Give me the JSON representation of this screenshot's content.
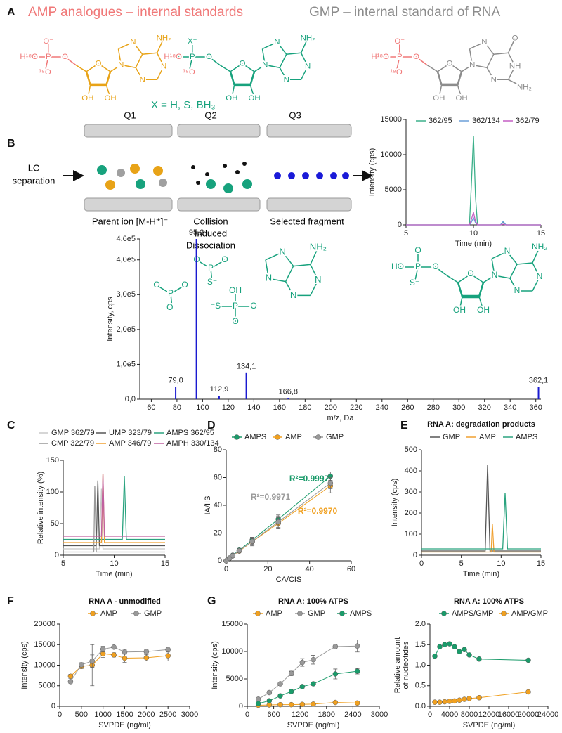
{
  "panel_labels": [
    "A",
    "B",
    "C",
    "D",
    "E",
    "F",
    "G"
  ],
  "panel_a": {
    "header_left": "AMP analogues  – internal standards",
    "header_right": "GMP  – internal standard of RNA",
    "x_note": "X = H, S, BH₃",
    "molecules": [
      {
        "phosphate": [
          "O⁻",
          "H¹⁸O",
          "O",
          "¹⁸O",
          "P"
        ],
        "sugar": [
          "O",
          "OH",
          "OH"
        ],
        "base": [
          "N",
          "N",
          "N",
          "N",
          "NH₂"
        ]
      },
      {
        "phosphate": [
          "X⁻",
          "H¹⁸O",
          "O",
          "¹⁸O",
          "P"
        ],
        "sugar": [
          "O",
          "OH",
          "OH"
        ],
        "base": [
          "N",
          "N",
          "N",
          "N",
          "NH₂"
        ]
      },
      {
        "phosphate": [
          "O⁻",
          "H¹⁸O",
          "O",
          "¹⁸O",
          "P"
        ],
        "sugar": [
          "O",
          "OH",
          "OH"
        ],
        "base": [
          "N",
          "N",
          "N",
          "NH",
          "O",
          "NH₂"
        ]
      }
    ]
  },
  "panel_b": {
    "stages": [
      "Q1",
      "Q2",
      "Q3"
    ],
    "inlet": [
      "LC",
      "separation"
    ],
    "captions": [
      [
        "Parent ion [M-H⁺]⁻"
      ],
      [
        "Collision",
        "Induced",
        "Dissociation"
      ],
      [
        "Selected fragment"
      ]
    ],
    "fragments": [
      {
        "atoms": [
          "P",
          "O",
          "O",
          "S⁻"
        ]
      },
      {
        "atoms": [
          "P",
          "O",
          "O",
          "O⁻"
        ]
      },
      {
        "atoms": [
          "P",
          "OH",
          "⁻S",
          "O",
          "O"
        ]
      }
    ],
    "base_fragment": {
      "base": [
        "N",
        "N",
        "N",
        "N",
        "NH₂"
      ]
    },
    "structure": {
      "phosphate": [
        "O",
        "HO",
        "O",
        "S⁻",
        "P"
      ],
      "sugar": [
        "O",
        "OH",
        "OH"
      ],
      "base": [
        "N",
        "N",
        "N",
        "N",
        "NH₂"
      ]
    }
  },
  "chart_data": [
    {
      "type": "line",
      "xlabel": "Time (min)",
      "ylabel": "Intensity (cps)",
      "x": [
        5,
        9.7,
        9.85,
        10,
        10.15,
        10.3,
        12,
        12.2,
        12.4,
        15
      ],
      "series": [
        {
          "name": "362/95",
          "color": "#3cb08a",
          "values": [
            0,
            0,
            6000,
            12700,
            4000,
            0,
            0,
            400,
            0,
            0
          ]
        },
        {
          "name": "362/134",
          "color": "#6a9fd8",
          "values": [
            0,
            0,
            400,
            1000,
            300,
            0,
            0,
            500,
            0,
            0
          ]
        },
        {
          "name": "362/79",
          "color": "#c45ec4",
          "values": [
            0,
            0,
            800,
            1800,
            500,
            0,
            0,
            100,
            0,
            0
          ]
        }
      ],
      "xlim": [
        5,
        15
      ],
      "xticks": [
        5,
        10,
        15
      ],
      "ylim": [
        0,
        15000
      ],
      "yticks": [
        0,
        5000,
        10000,
        15000
      ]
    },
    {
      "type": "bar",
      "xlabel": "m/z, Da",
      "ylabel": "Intensity, cps",
      "series": [
        {
          "color": "#1a1ad0",
          "x": [
            79.0,
            95.2,
            112.9,
            134.1,
            166.8,
            362.1
          ],
          "values": [
            35000,
            460000,
            10000,
            75000,
            3000,
            35000
          ],
          "x_labels": [
            "79,0",
            "95,2",
            "112,9",
            "134,1",
            "166,8",
            "362,1"
          ]
        }
      ],
      "xlim": [
        51,
        364
      ],
      "xticks": [
        60,
        80,
        100,
        120,
        140,
        160,
        180,
        200,
        220,
        240,
        260,
        280,
        300,
        320,
        340,
        360
      ],
      "ylim": [
        0,
        460000
      ],
      "yticks": [
        {
          "value": 0,
          "label": "0,0"
        },
        {
          "value": 100000,
          "label": "1,0e5"
        },
        {
          "value": 200000,
          "label": "2,0e5"
        },
        {
          "value": 300000,
          "label": "3,0e5"
        },
        {
          "value": 400000,
          "label": "4,0e5"
        },
        {
          "value": 460000,
          "label": "4,6e5"
        }
      ]
    },
    {
      "type": "line",
      "xlabel": "Time (min)",
      "ylabel": "Relative intensity (%)",
      "x": [
        5,
        8.0,
        8.1,
        8.25,
        8.4,
        8.55,
        8.75,
        8.9,
        9.05,
        10.8,
        11.0,
        11.2,
        15
      ],
      "series": [
        {
          "name": "GMP 362/79",
          "color": "#c8c8c8",
          "values": [
            10,
            10,
            10,
            10,
            10,
            10,
            105,
            10,
            10,
            10,
            10,
            10,
            10
          ]
        },
        {
          "name": "UMP 323/79",
          "color": "#555555",
          "values": [
            15,
            15,
            15,
            15,
            118,
            15,
            15,
            15,
            15,
            15,
            15,
            15,
            15
          ]
        },
        {
          "name": "AMPS 362/95",
          "color": "#2aa37f",
          "values": [
            25,
            25,
            25,
            25,
            25,
            25,
            25,
            25,
            25,
            25,
            125,
            25,
            25
          ]
        },
        {
          "name": "CMP 322/79",
          "color": "#999999",
          "values": [
            5,
            5,
            110,
            5,
            5,
            5,
            5,
            5,
            5,
            5,
            5,
            5,
            5
          ]
        },
        {
          "name": "AMP 346/79",
          "color": "#f0a030",
          "values": [
            20,
            20,
            20,
            20,
            20,
            20,
            20,
            128,
            20,
            20,
            20,
            20,
            20
          ]
        },
        {
          "name": "AMPH 330/134",
          "color": "#c060a0",
          "values": [
            30,
            30,
            30,
            30,
            30,
            30,
            30,
            128,
            30,
            30,
            30,
            30,
            30
          ]
        }
      ],
      "xlim": [
        5,
        15
      ],
      "xticks": [
        5,
        10,
        15
      ],
      "ylim": [
        0,
        150
      ],
      "yticks": [
        0,
        50,
        100,
        150
      ]
    },
    {
      "type": "scatter",
      "xlabel": "CA/CIS",
      "ylabel": "IA/IIS",
      "markers": true,
      "x": [
        0,
        0.78,
        1.56,
        3.13,
        6.25,
        12.5,
        25,
        50
      ],
      "series": [
        {
          "name": "AMPS",
          "color": "#1a9b6a",
          "values": [
            0,
            1,
            2,
            4,
            7.7,
            15,
            30,
            61
          ],
          "errors": [
            0,
            0,
            0,
            0,
            0.5,
            2,
            3,
            3
          ]
        },
        {
          "name": "AMP",
          "color": "#f0a020",
          "values": [
            0,
            0.9,
            1.8,
            3.6,
            7,
            13.8,
            27,
            54
          ],
          "errors": [
            0,
            0,
            0,
            0,
            0.5,
            3,
            4,
            5
          ]
        },
        {
          "name": "GMP",
          "color": "#999999",
          "values": [
            0,
            0.95,
            1.9,
            3.7,
            7.3,
            14,
            28,
            56
          ],
          "errors": [
            0,
            0,
            0,
            0,
            0.5,
            2,
            4,
            4
          ]
        }
      ],
      "annotations": [
        {
          "text": "R²=0.9997",
          "color": "#1a9b6a"
        },
        {
          "text": "R²=0.9971",
          "color": "#999999"
        },
        {
          "text": "R²=0.9970",
          "color": "#f0a020"
        }
      ],
      "xlim": [
        0,
        60
      ],
      "xticks": [
        0,
        20,
        40,
        60
      ],
      "ylim": [
        0,
        80
      ],
      "yticks": [
        0,
        20,
        40,
        60,
        80
      ]
    },
    {
      "type": "line",
      "title": "RNA A: degradation products",
      "xlabel": "Time (min)",
      "ylabel": "Intensity (cps)",
      "x": [
        0,
        8.0,
        8.3,
        8.6,
        8.75,
        8.9,
        9.1,
        10.2,
        10.5,
        10.8,
        15
      ],
      "series": [
        {
          "name": "GMP",
          "color": "#555555",
          "values": [
            20,
            20,
            430,
            20,
            20,
            20,
            20,
            20,
            20,
            20,
            20
          ]
        },
        {
          "name": "AMP",
          "color": "#f0a030",
          "values": [
            15,
            15,
            15,
            15,
            15,
            150,
            15,
            15,
            15,
            15,
            15
          ]
        },
        {
          "name": "AMPS",
          "color": "#2aa37f",
          "values": [
            30,
            30,
            30,
            30,
            30,
            30,
            30,
            30,
            295,
            30,
            30
          ]
        }
      ],
      "xlim": [
        0,
        15
      ],
      "xticks": [
        0,
        5,
        10,
        15
      ],
      "ylim": [
        0,
        500
      ],
      "yticks": [
        0,
        100,
        200,
        300,
        400,
        500
      ]
    },
    {
      "type": "line",
      "title": "RNA A - unmodified",
      "xlabel": "SVPDE (ng/ml)",
      "ylabel": "Intensity (cps)",
      "markers": true,
      "x": [
        250,
        500,
        750,
        1000,
        1250,
        1500,
        2000,
        2500
      ],
      "series": [
        {
          "name": "AMP",
          "color": "#f0a020",
          "values": [
            7300,
            9700,
            10000,
            12800,
            12500,
            11700,
            11800,
            12300
          ],
          "errors": [
            500,
            500,
            5000,
            900,
            500,
            1000,
            800,
            1300
          ]
        },
        {
          "name": "GMP",
          "color": "#999999",
          "values": [
            6000,
            10100,
            11000,
            13900,
            14400,
            13200,
            13300,
            13800
          ],
          "errors": [
            400,
            500,
            1500,
            700,
            300,
            500,
            500,
            600
          ]
        }
      ],
      "xlim": [
        0,
        3000
      ],
      "xticks": [
        0,
        500,
        1000,
        1500,
        2000,
        2500,
        3000
      ],
      "ylim": [
        0,
        20000
      ],
      "yticks": [
        0,
        5000,
        10000,
        15000,
        20000
      ]
    },
    {
      "type": "line",
      "title": "RNA A: 100% ATPS",
      "xlabel": "SVPDE (ng/ml)",
      "ylabel": "Intensity (cps)",
      "markers": true,
      "x": [
        250,
        500,
        750,
        1000,
        1250,
        1500,
        2000,
        2500
      ],
      "series": [
        {
          "name": "AMP",
          "color": "#f0a020",
          "values": [
            200,
            250,
            300,
            300,
            350,
            400,
            700,
            600
          ]
        },
        {
          "name": "GMP",
          "color": "#999999",
          "values": [
            1300,
            2500,
            4100,
            6000,
            8000,
            8500,
            10900,
            11000
          ],
          "errors": [
            200,
            300,
            300,
            400,
            700,
            800,
            400,
            1100
          ]
        },
        {
          "name": "AMPS",
          "color": "#1a9b6a",
          "values": [
            500,
            1000,
            1900,
            2700,
            3600,
            4100,
            5900,
            6400
          ],
          "errors": [
            100,
            100,
            200,
            300,
            300,
            300,
            900,
            500
          ]
        }
      ],
      "xlim": [
        0,
        3000
      ],
      "xticks": [
        0,
        600,
        1200,
        1800,
        2400,
        3000
      ],
      "ylim": [
        0,
        15000
      ],
      "yticks": [
        0,
        5000,
        10000,
        15000
      ]
    },
    {
      "type": "line",
      "title": "RNA A: 100% ATPS",
      "xlabel": "SVPDE (ng/ml)",
      "ylabel": [
        "Relative amount",
        "of nucleotides"
      ],
      "markers": true,
      "x": [
        1000,
        2000,
        3000,
        4000,
        5000,
        6000,
        7000,
        8000,
        10000,
        20000
      ],
      "series": [
        {
          "name": "AMPS/GMP",
          "color": "#1a9b6a",
          "values": [
            1.22,
            1.45,
            1.5,
            1.52,
            1.45,
            1.33,
            1.38,
            1.25,
            1.15,
            1.12
          ]
        },
        {
          "name": "AMP/GMP",
          "color": "#f0a020",
          "values": [
            0.1,
            0.1,
            0.11,
            0.12,
            0.13,
            0.15,
            0.17,
            0.19,
            0.21,
            0.35
          ]
        }
      ],
      "xlim": [
        0,
        24000
      ],
      "xticks": [
        0,
        4000,
        8000,
        12000,
        16000,
        20000,
        24000
      ],
      "ylim": [
        0,
        2
      ],
      "yticks": [
        {
          "value": 0,
          "label": "0.0"
        },
        {
          "value": 0.5,
          "label": "0.5"
        },
        {
          "value": 1,
          "label": "1.0"
        },
        {
          "value": 1.5,
          "label": "1.5"
        },
        {
          "value": 2,
          "label": "2.0"
        }
      ]
    }
  ]
}
